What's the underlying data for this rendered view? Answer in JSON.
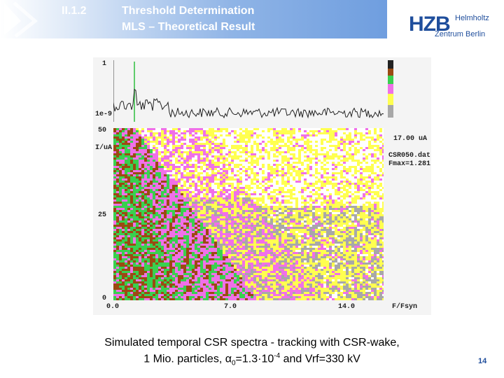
{
  "header": {
    "section_number": "II.1.2",
    "title_line1": "Threshold Determination",
    "title_line2": "MLS – Theoretical Result"
  },
  "logo": {
    "name": "HZB",
    "line1": "Helmholtz",
    "line2": "Zentrum Berlin",
    "color": "#1f4e9c"
  },
  "plot": {
    "top_axis": {
      "max_label": "1",
      "min_label": "1e-9"
    },
    "left_axis": {
      "max_label": "50",
      "unit": "I/uA",
      "mid_label": "25",
      "zero_label": "0"
    },
    "x_ticks": [
      "0.0",
      "7.0",
      "14.0"
    ],
    "x_label": "F/Fsyn",
    "info_current": "17.00 uA",
    "info_file": "CSR050.dat",
    "info_fmax": "Fmax=1.281"
  },
  "caption": {
    "line1": "Simulated temporal CSR spectra - tracking with CSR-wake,",
    "line2_prefix": "1 Mio. particles, α",
    "line2_sub": "0",
    "line2_mid": "=1.3·10",
    "line2_sup": "-4",
    "line2_suffix": " and Vrf=330 kV"
  },
  "page_number": "14",
  "colors": {
    "green": "#39d04f",
    "brown": "#9b4a12",
    "magenta": "#f070e8",
    "yellow": "#ffff50",
    "gray": "#a8a8a8",
    "white": "#ffffff"
  }
}
